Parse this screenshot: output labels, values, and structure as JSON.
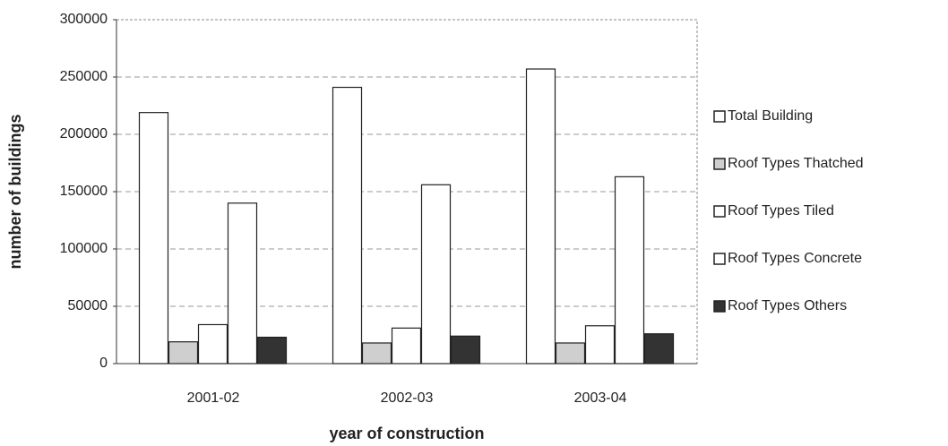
{
  "chart_data": {
    "type": "bar",
    "x_label": "year of construction",
    "y_label": "number of buildings",
    "categories": [
      "2001-02",
      "2002-03",
      "2003-04"
    ],
    "series": [
      {
        "name": "Total Building",
        "color": "#ffffff",
        "values": [
          219000,
          241000,
          257000
        ]
      },
      {
        "name": "Roof Types Thatched",
        "color": "#cfcfcf",
        "values": [
          19000,
          18000,
          18000
        ]
      },
      {
        "name": "Roof Types Tiled",
        "color": "#ffffff",
        "values": [
          34000,
          31000,
          33000
        ]
      },
      {
        "name": "Roof Types Concrete",
        "color": "#ffffff",
        "values": [
          140000,
          156000,
          163000
        ]
      },
      {
        "name": "Roof Types Others",
        "color": "#333333",
        "values": [
          23000,
          24000,
          26000
        ]
      }
    ],
    "ylim": [
      0,
      300000
    ],
    "yticks": [
      0,
      50000,
      100000,
      150000,
      200000,
      250000,
      300000
    ],
    "grid": true,
    "legend": "right"
  }
}
